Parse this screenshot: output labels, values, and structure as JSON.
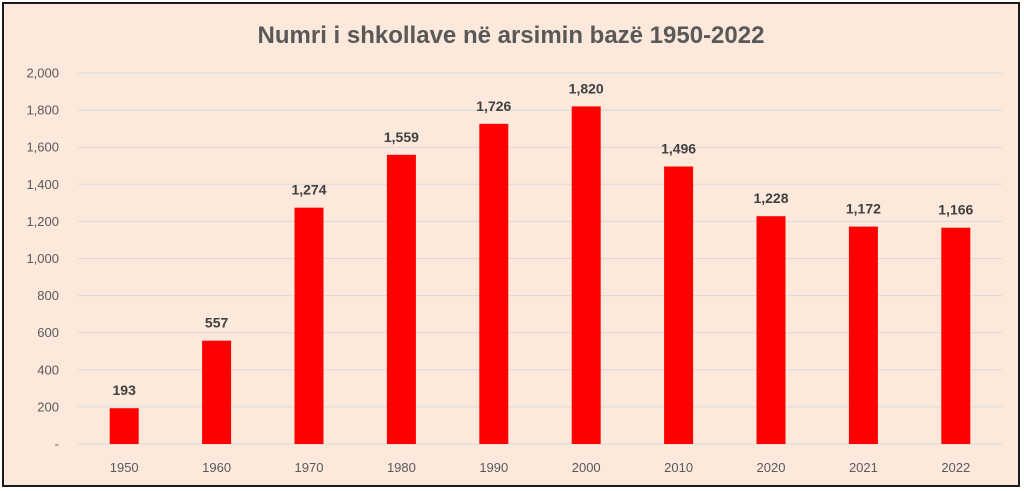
{
  "chart_data": {
    "type": "bar",
    "title": "Numri i shkollave në arsimin bazë 1950-2022",
    "xlabel": "",
    "ylabel": "",
    "categories": [
      "1950",
      "1960",
      "1970",
      "1980",
      "1990",
      "2000",
      "2010",
      "2020",
      "2021",
      "2022"
    ],
    "values": [
      193,
      557,
      1274,
      1559,
      1726,
      1820,
      1496,
      1228,
      1172,
      1166
    ],
    "data_labels": [
      "193",
      "557",
      "1,274",
      "1,559",
      "1,726",
      "1,820",
      "1,496",
      "1,228",
      "1,172",
      "1,166"
    ],
    "ylim": [
      0,
      2000
    ],
    "y_ticks": [
      0,
      200,
      400,
      600,
      800,
      1000,
      1200,
      1400,
      1600,
      1800,
      2000
    ],
    "y_tick_labels": [
      "-",
      "200",
      "400",
      "600",
      "800",
      "1,000",
      "1,200",
      "1,400",
      "1,600",
      "1,800",
      "2,000"
    ],
    "grid": true,
    "legend": "none",
    "colors": {
      "bar": "#ff0000",
      "background": "#fce9dc",
      "grid": "#d9d9d9",
      "text": "#595959",
      "label": "#404040"
    }
  }
}
